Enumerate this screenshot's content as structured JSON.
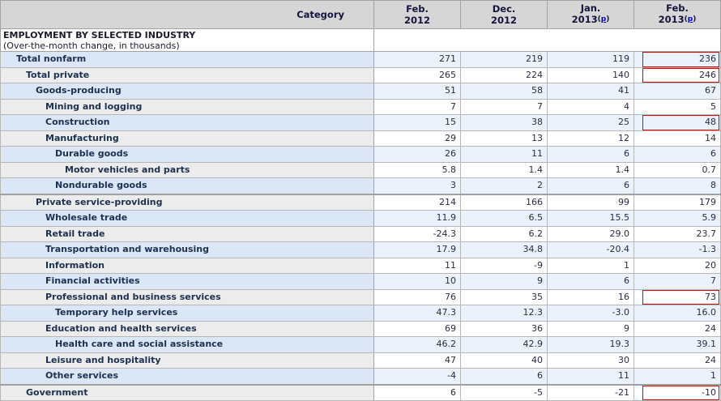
{
  "header": {
    "category_label": "Category",
    "columns": [
      {
        "month": "Feb.",
        "year": "2012",
        "footnote": ""
      },
      {
        "month": "Dec.",
        "year": "2012",
        "footnote": ""
      },
      {
        "month": "Jan.",
        "year": "2013",
        "footnote": "p"
      },
      {
        "month": "Feb.",
        "year": "2013",
        "footnote": "p"
      }
    ]
  },
  "section": {
    "title": "EMPLOYMENT BY SELECTED INDUSTRY",
    "subtitle": "(Over-the-month change, in thousands)"
  },
  "colors": {
    "header_bg": "#d6d6d6",
    "row_blue_category": "#dbe6f7",
    "row_blue_data": "#ebf2fc",
    "row_gray_category": "#ececec",
    "row_white_data": "#ffffff",
    "highlight_border": "#e00000",
    "footnote_link": "#0000cc"
  },
  "table": {
    "rows": [
      {
        "category": "Total nonfarm",
        "indent": 0,
        "values": [
          "271",
          "219",
          "119",
          "236"
        ],
        "highlight_col": 3
      },
      {
        "category": "Total private",
        "indent": 1,
        "values": [
          "265",
          "224",
          "140",
          "246"
        ],
        "highlight_col": 3
      },
      {
        "category": "Goods-producing",
        "indent": 2,
        "values": [
          "51",
          "58",
          "41",
          "67"
        ],
        "highlight_col": null
      },
      {
        "category": "Mining and logging",
        "indent": 3,
        "values": [
          "7",
          "7",
          "4",
          "5"
        ],
        "highlight_col": null
      },
      {
        "category": "Construction",
        "indent": 3,
        "values": [
          "15",
          "38",
          "25",
          "48"
        ],
        "highlight_col": 3
      },
      {
        "category": "Manufacturing",
        "indent": 3,
        "values": [
          "29",
          "13",
          "12",
          "14"
        ],
        "highlight_col": null
      },
      {
        "category": "Durable goods",
        "indent": 4,
        "values": [
          "26",
          "11",
          "6",
          "6"
        ],
        "highlight_col": null
      },
      {
        "category": "Motor vehicles and parts",
        "indent": 5,
        "values": [
          "5.8",
          "1.4",
          "1.4",
          "0.7"
        ],
        "highlight_col": null
      },
      {
        "category": "Nondurable goods",
        "indent": 4,
        "values": [
          "3",
          "2",
          "6",
          "8"
        ],
        "highlight_col": null
      },
      {
        "category": "Private service-providing",
        "indent": 2,
        "values": [
          "214",
          "166",
          "99",
          "179"
        ],
        "highlight_col": null,
        "group_start": true
      },
      {
        "category": "Wholesale trade",
        "indent": 3,
        "values": [
          "11.9",
          "6.5",
          "15.5",
          "5.9"
        ],
        "highlight_col": null
      },
      {
        "category": "Retail trade",
        "indent": 3,
        "values": [
          "-24.3",
          "6.2",
          "29.0",
          "23.7"
        ],
        "highlight_col": null
      },
      {
        "category": "Transportation and warehousing",
        "indent": 3,
        "values": [
          "17.9",
          "34.8",
          "-20.4",
          "-1.3"
        ],
        "highlight_col": null
      },
      {
        "category": "Information",
        "indent": 3,
        "values": [
          "11",
          "-9",
          "1",
          "20"
        ],
        "highlight_col": null
      },
      {
        "category": "Financial activities",
        "indent": 3,
        "values": [
          "10",
          "9",
          "6",
          "7"
        ],
        "highlight_col": null
      },
      {
        "category": "Professional and business services",
        "indent": 3,
        "values": [
          "76",
          "35",
          "16",
          "73"
        ],
        "highlight_col": 3
      },
      {
        "category": "Temporary help services",
        "indent": 4,
        "values": [
          "47.3",
          "12.3",
          "-3.0",
          "16.0"
        ],
        "highlight_col": null
      },
      {
        "category": "Education and health services",
        "indent": 3,
        "values": [
          "69",
          "36",
          "9",
          "24"
        ],
        "highlight_col": null
      },
      {
        "category": "Health care and social assistance",
        "indent": 4,
        "values": [
          "46.2",
          "42.9",
          "19.3",
          "39.1"
        ],
        "highlight_col": null
      },
      {
        "category": "Leisure and hospitality",
        "indent": 3,
        "values": [
          "47",
          "40",
          "30",
          "24"
        ],
        "highlight_col": null
      },
      {
        "category": "Other services",
        "indent": 3,
        "values": [
          "-4",
          "6",
          "11",
          "1"
        ],
        "highlight_col": null
      },
      {
        "category": "Government",
        "indent": 1,
        "values": [
          "6",
          "-5",
          "-21",
          "-10"
        ],
        "highlight_col": 3,
        "group_start": true
      }
    ]
  }
}
